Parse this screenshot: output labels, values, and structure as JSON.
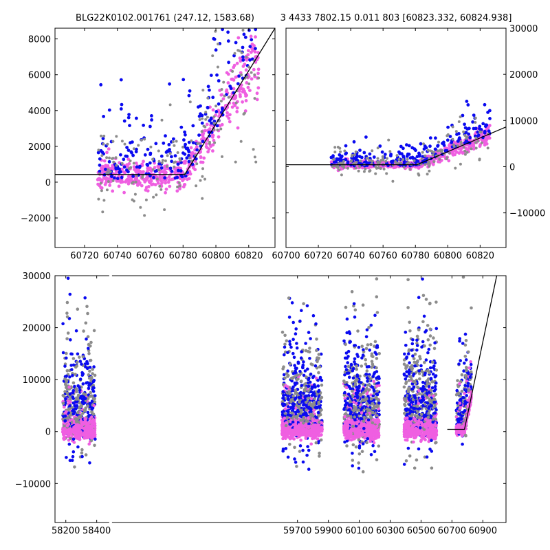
{
  "title_left": "BLG22K0102.001761 (247.12, 1583.68)",
  "title_right": "3 4433 7802.15 0.011 803 [60823.332, 60824.938]",
  "colors": {
    "blue": "#0a0af0",
    "pink": "#ef5fe1",
    "gray": "#8c8c8c",
    "model": "#000000"
  },
  "chart_data": [
    {
      "panel": "top-left",
      "type": "scatter",
      "xlim": [
        60702,
        60836
      ],
      "ylim": [
        -3650,
        8600
      ],
      "xticks": [
        60720,
        60740,
        60760,
        60780,
        60800,
        60820
      ],
      "yticks": [
        -2000,
        0,
        2000,
        4000,
        6000,
        8000
      ],
      "ytick_labels": [
        "−2000",
        "0",
        "2000",
        "4000",
        "6000",
        "8000"
      ],
      "model_line": {
        "x": [
          60702,
          60781,
          60836
        ],
        "y": [
          430,
          430,
          8600
        ]
      },
      "series": [
        {
          "name": "pink",
          "color": "pink",
          "x_range": [
            60728,
            60826
          ],
          "seed": 11,
          "count": 520
        },
        {
          "name": "blue",
          "color": "blue",
          "x_range": [
            60728,
            60826
          ],
          "seed": 12,
          "count": 230
        },
        {
          "name": "gray",
          "color": "gray",
          "x_range": [
            60728,
            60826
          ],
          "seed": 13,
          "count": 160
        }
      ]
    },
    {
      "panel": "top-right",
      "type": "scatter",
      "xlim": [
        60700,
        60836
      ],
      "ylim": [
        -17500,
        30000
      ],
      "xticks": [
        60700,
        60720,
        60740,
        60760,
        60780,
        60800,
        60820
      ],
      "yticks": [
        -10000,
        0,
        10000,
        20000,
        30000
      ],
      "ytick_labels": [
        "−10000",
        "0",
        "10000",
        "20000",
        "30000"
      ],
      "y_axis_side": "right",
      "model_line": {
        "x": [
          60700,
          60781,
          60836
        ],
        "y": [
          430,
          430,
          8600
        ]
      },
      "series": [
        {
          "name": "pink",
          "color": "pink",
          "x_range": [
            60728,
            60826
          ],
          "seed": 21,
          "count": 520
        },
        {
          "name": "blue",
          "color": "blue",
          "x_range": [
            60728,
            60826
          ],
          "seed": 22,
          "count": 230
        },
        {
          "name": "gray",
          "color": "gray",
          "x_range": [
            60728,
            60826
          ],
          "seed": 23,
          "count": 160
        }
      ]
    },
    {
      "panel": "bottom",
      "type": "scatter",
      "xlim": [
        58130,
        61050
      ],
      "ylim": [
        -17500,
        30000
      ],
      "xticks": [
        58200,
        58400,
        59700,
        59900,
        60100,
        60300,
        60500,
        60700,
        60900
      ],
      "yticks": [
        -10000,
        0,
        10000,
        20000,
        30000
      ],
      "ytick_labels": [
        "−10000",
        "0",
        "10000",
        "20000",
        "30000"
      ],
      "axis_break": "between 58400 and 59700",
      "model_line": {
        "x": [
          60670,
          60781,
          60990
        ],
        "y": [
          430,
          430,
          30000
        ]
      },
      "seasons": [
        {
          "x_range": [
            58180,
            58390
          ],
          "count": 1000
        },
        {
          "x_range": [
            59600,
            59860
          ],
          "count": 1300
        },
        {
          "x_range": [
            60000,
            60230
          ],
          "count": 1300
        },
        {
          "x_range": [
            60390,
            60600
          ],
          "count": 1200
        },
        {
          "x_range": [
            60728,
            60826
          ],
          "count": 450
        }
      ]
    }
  ]
}
